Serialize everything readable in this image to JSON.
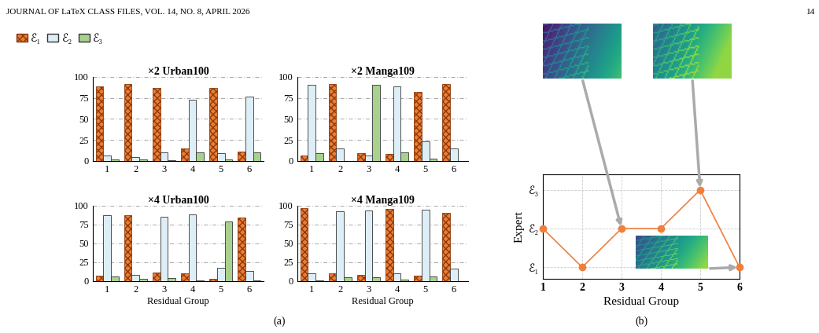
{
  "header": {
    "left": "JOURNAL OF LaTeX CLASS FILES, VOL. 14, NO. 8, APRIL 2026",
    "right": "14"
  },
  "panel_labels": [
    "(a)",
    "(b)"
  ],
  "chart_data": [
    {
      "type": "bar",
      "title": "×2 Urban100",
      "categories": [
        "1",
        "2",
        "3",
        "4",
        "5",
        "6"
      ],
      "ylim": [
        0,
        100
      ],
      "yticks": [
        0,
        25,
        50,
        75,
        100
      ],
      "grid": true,
      "legend": "upper left",
      "series": [
        {
          "name": "ℰ₁",
          "color": "#ED7D31",
          "values": [
            89,
            92,
            87,
            15,
            87,
            11
          ]
        },
        {
          "name": "ℰ₂",
          "color": "#DDEEF6",
          "values": [
            7,
            5,
            10,
            73,
            9,
            77
          ]
        },
        {
          "name": "ℰ₃",
          "color": "#A9D18E",
          "values": [
            2,
            2,
            1,
            10,
            2,
            10
          ]
        }
      ]
    },
    {
      "type": "bar",
      "title": "×2 Manga109",
      "categories": [
        "1",
        "2",
        "3",
        "4",
        "5",
        "6"
      ],
      "ylim": [
        0,
        100
      ],
      "yticks": [
        0,
        25,
        50,
        75,
        100
      ],
      "grid": true,
      "series": [
        {
          "name": "ℰ₁",
          "color": "#ED7D31",
          "values": [
            7,
            92,
            9,
            8,
            82,
            92
          ]
        },
        {
          "name": "ℰ₂",
          "color": "#DDEEF6",
          "values": [
            91,
            15,
            7,
            89,
            23,
            15
          ]
        },
        {
          "name": "ℰ₃",
          "color": "#A9D18E",
          "values": [
            9,
            0,
            91,
            10,
            3,
            0
          ]
        }
      ]
    },
    {
      "type": "bar",
      "title": "×4 Urban100",
      "x_label": "Residual Group",
      "categories": [
        "1",
        "2",
        "3",
        "4",
        "5",
        "6"
      ],
      "ylim": [
        0,
        100
      ],
      "yticks": [
        0,
        25,
        50,
        75,
        100
      ],
      "grid": true,
      "series": [
        {
          "name": "ℰ₁",
          "color": "#ED7D31",
          "values": [
            7,
            88,
            11,
            10,
            3,
            84
          ]
        },
        {
          "name": "ℰ₂",
          "color": "#DDEEF6",
          "values": [
            87,
            8,
            85,
            89,
            18,
            14
          ]
        },
        {
          "name": "ℰ₃",
          "color": "#A9D18E",
          "values": [
            6,
            3,
            4,
            1,
            79,
            1
          ]
        }
      ]
    },
    {
      "type": "bar",
      "title": "×4 Manga109",
      "x_label": "Residual Group",
      "categories": [
        "1",
        "2",
        "3",
        "4",
        "5",
        "6"
      ],
      "ylim": [
        0,
        100
      ],
      "yticks": [
        0,
        25,
        50,
        75,
        100
      ],
      "grid": true,
      "series": [
        {
          "name": "ℰ₁",
          "color": "#ED7D31",
          "values": [
            97,
            10,
            8,
            96,
            7,
            91
          ]
        },
        {
          "name": "ℰ₂",
          "color": "#DDEEF6",
          "values": [
            10,
            93,
            94,
            10,
            95,
            17
          ]
        },
        {
          "name": "ℰ₃",
          "color": "#A9D18E",
          "values": [
            1,
            5,
            5,
            2,
            6,
            0
          ]
        }
      ]
    },
    {
      "type": "line",
      "x_label": "Residual Group",
      "y_label": "Expert",
      "x": [
        1,
        2,
        3,
        4,
        5,
        6
      ],
      "values": [
        2,
        1,
        2,
        2,
        3,
        1
      ],
      "color": "#F07F3C",
      "marker": "o",
      "xlim": [
        1,
        6
      ],
      "xticks": [
        1,
        2,
        3,
        4,
        5,
        6
      ],
      "ylim": [
        0.7,
        3.4
      ],
      "yticks": [
        {
          "value": 1,
          "label": "ℰ₁"
        },
        {
          "value": 2,
          "label": "ℰ₂"
        },
        {
          "value": 3,
          "label": "ℰ₃"
        }
      ],
      "grid": true
    }
  ]
}
